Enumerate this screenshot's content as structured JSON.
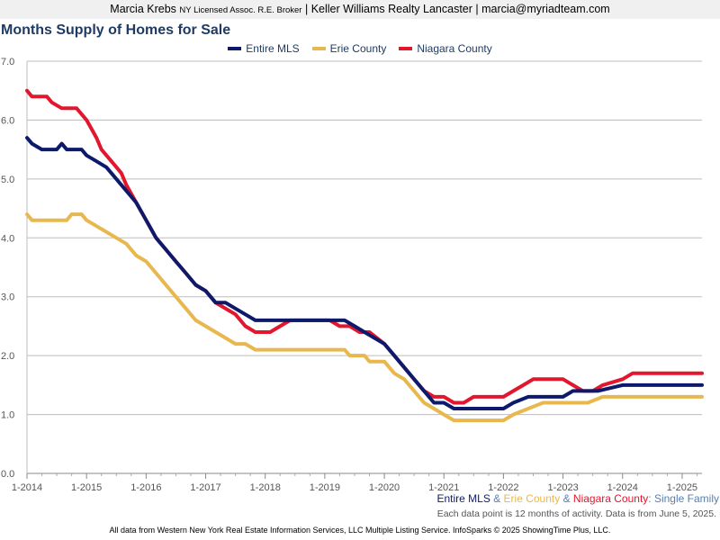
{
  "header": {
    "agent_name": "Marcia Krebs",
    "agent_license": "NY Licensed Assoc. R.E. Broker",
    "brokerage": "Keller Williams Realty Lancaster",
    "email": "marcia@myriadteam.com",
    "separator": "|"
  },
  "footer": {
    "series_parts": [
      {
        "text": "Entire MLS",
        "color": "#0d1a6b"
      },
      {
        "text": " & ",
        "color": "#5a7fb0"
      },
      {
        "text": "Erie County",
        "color": "#e8b84f"
      },
      {
        "text": " & ",
        "color": "#5a7fb0"
      },
      {
        "text": "Niagara County",
        "color": "#e2162d"
      },
      {
        "text": ": Single Family",
        "color": "#5a7fb0"
      }
    ],
    "note": "Each data point is 12 months of activity. Data is from June 5, 2025.",
    "source": "All data from Western New York Real Estate Information Services, LLC Multiple Listing Service. InfoSparks © 2025 ShowingTime Plus, LLC."
  },
  "chart_data": {
    "type": "line",
    "title": "Months Supply of Homes for Sale",
    "legend_position": "top-center",
    "grid": true,
    "ylim": [
      0,
      7
    ],
    "yticks": [
      "0.0",
      "1.0",
      "2.0",
      "3.0",
      "4.0",
      "5.0",
      "6.0",
      "7.0"
    ],
    "xlim": [
      "2014-01",
      "2025-05"
    ],
    "xticks": [
      "1-2014",
      "1-2015",
      "1-2016",
      "1-2017",
      "1-2018",
      "1-2019",
      "1-2020",
      "1-2021",
      "1-2022",
      "1-2023",
      "1-2024",
      "1-2025"
    ],
    "series": [
      {
        "name": "Entire MLS",
        "color": "#0d1a6b",
        "points": [
          [
            "2014-01",
            5.7
          ],
          [
            "2014-02",
            5.6
          ],
          [
            "2014-04",
            5.5
          ],
          [
            "2014-07",
            5.5
          ],
          [
            "2014-08",
            5.6
          ],
          [
            "2014-09",
            5.5
          ],
          [
            "2014-12",
            5.5
          ],
          [
            "2015-01",
            5.4
          ],
          [
            "2015-03",
            5.3
          ],
          [
            "2015-05",
            5.2
          ],
          [
            "2015-07",
            5.0
          ],
          [
            "2015-09",
            4.8
          ],
          [
            "2015-11",
            4.6
          ],
          [
            "2016-01",
            4.3
          ],
          [
            "2016-03",
            4.0
          ],
          [
            "2016-05",
            3.8
          ],
          [
            "2016-07",
            3.6
          ],
          [
            "2016-09",
            3.4
          ],
          [
            "2016-11",
            3.2
          ],
          [
            "2017-01",
            3.1
          ],
          [
            "2017-03",
            2.9
          ],
          [
            "2017-05",
            2.9
          ],
          [
            "2017-07",
            2.8
          ],
          [
            "2017-09",
            2.7
          ],
          [
            "2017-11",
            2.6
          ],
          [
            "2018-06",
            2.6
          ],
          [
            "2018-11",
            2.6
          ],
          [
            "2019-05",
            2.6
          ],
          [
            "2019-07",
            2.5
          ],
          [
            "2019-09",
            2.4
          ],
          [
            "2019-11",
            2.3
          ],
          [
            "2020-01",
            2.2
          ],
          [
            "2020-03",
            2.0
          ],
          [
            "2020-05",
            1.8
          ],
          [
            "2020-07",
            1.6
          ],
          [
            "2020-09",
            1.4
          ],
          [
            "2020-11",
            1.2
          ],
          [
            "2021-01",
            1.2
          ],
          [
            "2021-03",
            1.1
          ],
          [
            "2021-07",
            1.1
          ],
          [
            "2022-01",
            1.1
          ],
          [
            "2022-03",
            1.2
          ],
          [
            "2022-06",
            1.3
          ],
          [
            "2023-01",
            1.3
          ],
          [
            "2023-03",
            1.4
          ],
          [
            "2023-05",
            1.4
          ],
          [
            "2023-08",
            1.4
          ],
          [
            "2024-01",
            1.5
          ],
          [
            "2024-07",
            1.5
          ],
          [
            "2025-01",
            1.5
          ],
          [
            "2025-05",
            1.5
          ]
        ]
      },
      {
        "name": "Erie County",
        "color": "#e8b84f",
        "points": [
          [
            "2014-01",
            4.4
          ],
          [
            "2014-02",
            4.3
          ],
          [
            "2014-09",
            4.3
          ],
          [
            "2014-10",
            4.4
          ],
          [
            "2014-12",
            4.4
          ],
          [
            "2015-01",
            4.3
          ],
          [
            "2015-03",
            4.2
          ],
          [
            "2015-05",
            4.1
          ],
          [
            "2015-07",
            4.0
          ],
          [
            "2015-09",
            3.9
          ],
          [
            "2015-11",
            3.7
          ],
          [
            "2016-01",
            3.6
          ],
          [
            "2016-03",
            3.4
          ],
          [
            "2016-05",
            3.2
          ],
          [
            "2016-07",
            3.0
          ],
          [
            "2016-09",
            2.8
          ],
          [
            "2016-11",
            2.6
          ],
          [
            "2017-01",
            2.5
          ],
          [
            "2017-03",
            2.4
          ],
          [
            "2017-05",
            2.3
          ],
          [
            "2017-07",
            2.2
          ],
          [
            "2017-09",
            2.2
          ],
          [
            "2017-11",
            2.1
          ],
          [
            "2018-06",
            2.1
          ],
          [
            "2018-11",
            2.1
          ],
          [
            "2019-05",
            2.1
          ],
          [
            "2019-06",
            2.0
          ],
          [
            "2019-09",
            2.0
          ],
          [
            "2019-10",
            1.9
          ],
          [
            "2020-01",
            1.9
          ],
          [
            "2020-03",
            1.7
          ],
          [
            "2020-05",
            1.6
          ],
          [
            "2020-07",
            1.4
          ],
          [
            "2020-09",
            1.2
          ],
          [
            "2020-11",
            1.1
          ],
          [
            "2021-01",
            1.0
          ],
          [
            "2021-03",
            0.9
          ],
          [
            "2021-09",
            0.9
          ],
          [
            "2022-01",
            0.9
          ],
          [
            "2022-03",
            1.0
          ],
          [
            "2022-06",
            1.1
          ],
          [
            "2022-09",
            1.2
          ],
          [
            "2023-01",
            1.2
          ],
          [
            "2023-06",
            1.2
          ],
          [
            "2023-09",
            1.3
          ],
          [
            "2024-01",
            1.3
          ],
          [
            "2024-06",
            1.3
          ],
          [
            "2025-01",
            1.3
          ],
          [
            "2025-05",
            1.3
          ]
        ]
      },
      {
        "name": "Niagara County",
        "color": "#e2162d",
        "points": [
          [
            "2014-01",
            6.5
          ],
          [
            "2014-02",
            6.4
          ],
          [
            "2014-05",
            6.4
          ],
          [
            "2014-06",
            6.3
          ],
          [
            "2014-08",
            6.2
          ],
          [
            "2014-11",
            6.2
          ],
          [
            "2014-12",
            6.1
          ],
          [
            "2015-01",
            6.0
          ],
          [
            "2015-03",
            5.7
          ],
          [
            "2015-04",
            5.5
          ],
          [
            "2015-06",
            5.3
          ],
          [
            "2015-08",
            5.1
          ],
          [
            "2015-09",
            4.9
          ],
          [
            "2015-11",
            4.6
          ],
          [
            "2016-01",
            4.3
          ],
          [
            "2016-03",
            4.0
          ],
          [
            "2016-05",
            3.8
          ],
          [
            "2016-07",
            3.6
          ],
          [
            "2016-09",
            3.4
          ],
          [
            "2016-11",
            3.2
          ],
          [
            "2017-01",
            3.1
          ],
          [
            "2017-03",
            2.9
          ],
          [
            "2017-05",
            2.8
          ],
          [
            "2017-07",
            2.7
          ],
          [
            "2017-09",
            2.5
          ],
          [
            "2017-11",
            2.4
          ],
          [
            "2018-02",
            2.4
          ],
          [
            "2018-04",
            2.5
          ],
          [
            "2018-06",
            2.6
          ],
          [
            "2019-02",
            2.6
          ],
          [
            "2019-04",
            2.5
          ],
          [
            "2019-06",
            2.5
          ],
          [
            "2019-08",
            2.4
          ],
          [
            "2019-10",
            2.4
          ],
          [
            "2020-01",
            2.2
          ],
          [
            "2020-03",
            2.0
          ],
          [
            "2020-05",
            1.8
          ],
          [
            "2020-07",
            1.6
          ],
          [
            "2020-09",
            1.4
          ],
          [
            "2020-11",
            1.3
          ],
          [
            "2021-01",
            1.3
          ],
          [
            "2021-03",
            1.2
          ],
          [
            "2021-05",
            1.2
          ],
          [
            "2021-07",
            1.3
          ],
          [
            "2022-01",
            1.3
          ],
          [
            "2022-03",
            1.4
          ],
          [
            "2022-05",
            1.5
          ],
          [
            "2022-07",
            1.6
          ],
          [
            "2022-09",
            1.6
          ],
          [
            "2023-01",
            1.6
          ],
          [
            "2023-03",
            1.5
          ],
          [
            "2023-05",
            1.4
          ],
          [
            "2023-07",
            1.4
          ],
          [
            "2023-09",
            1.5
          ],
          [
            "2024-01",
            1.6
          ],
          [
            "2024-03",
            1.7
          ],
          [
            "2024-06",
            1.7
          ],
          [
            "2025-01",
            1.7
          ],
          [
            "2025-05",
            1.7
          ]
        ]
      }
    ]
  }
}
